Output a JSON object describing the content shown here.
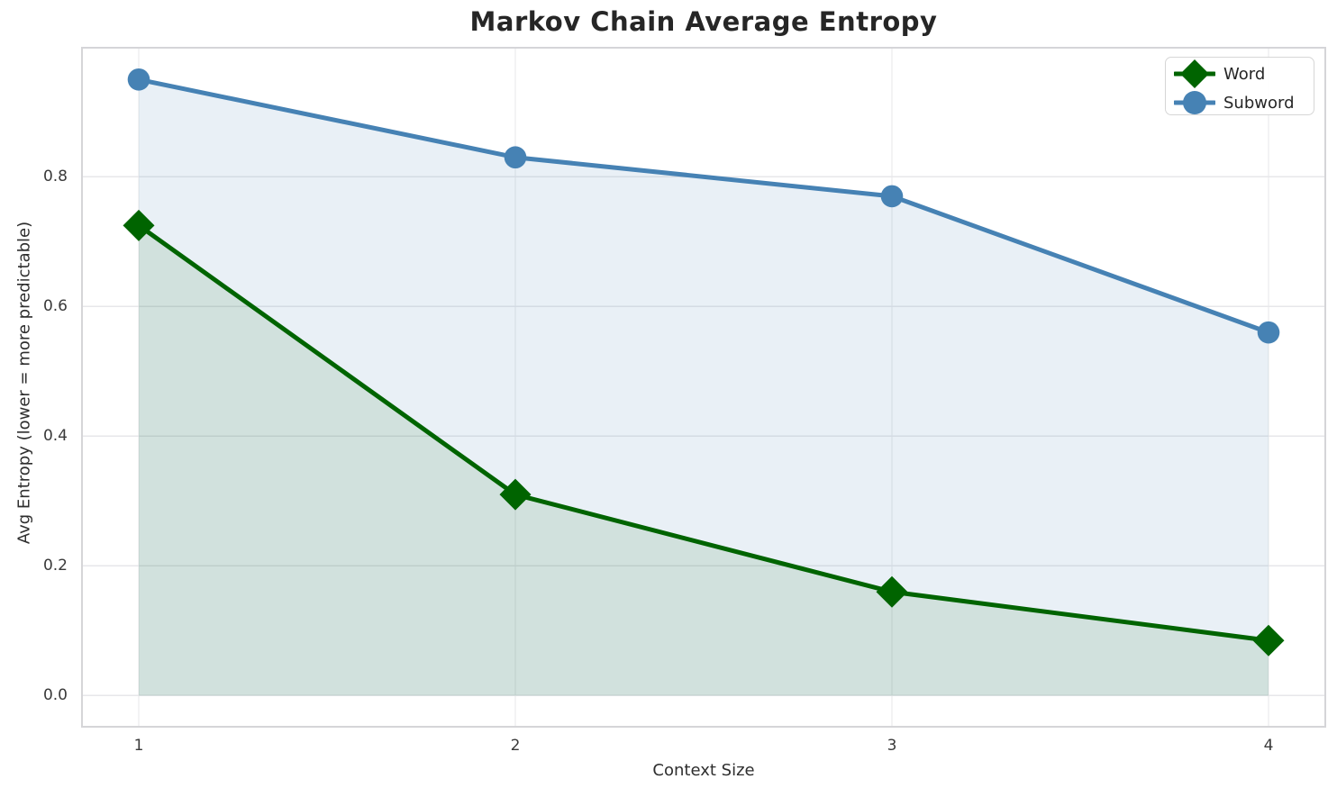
{
  "chart_data": {
    "type": "line",
    "title": "Markov Chain Average Entropy",
    "xlabel": "Context Size",
    "ylabel": "Avg Entropy (lower = more predictable)",
    "x": [
      1,
      2,
      3,
      4
    ],
    "x_tick_labels": [
      "1",
      "2",
      "3",
      "4"
    ],
    "y_ticks": [
      0.0,
      0.2,
      0.4,
      0.6,
      0.8
    ],
    "y_tick_labels": [
      "0.0",
      "0.2",
      "0.4",
      "0.6",
      "0.8"
    ],
    "ylim": [
      -0.048,
      0.999
    ],
    "grid": true,
    "legend_position": "upper right",
    "series": [
      {
        "name": "Word",
        "values": [
          0.725,
          0.31,
          0.16,
          0.085
        ],
        "color": "#006400",
        "marker": "diamond",
        "fill_to_zero": true,
        "fill_opacity": 0.1
      },
      {
        "name": "Subword",
        "values": [
          0.95,
          0.83,
          0.77,
          0.56
        ],
        "color": "#4682B4",
        "marker": "circle",
        "fill_to_zero": true,
        "fill_opacity": 0.12
      }
    ]
  }
}
